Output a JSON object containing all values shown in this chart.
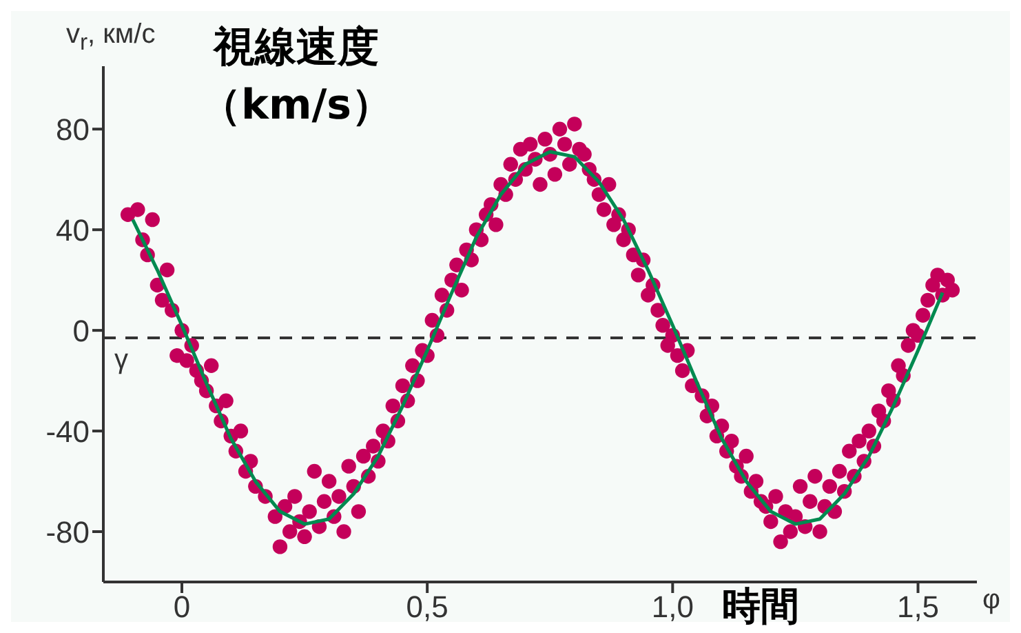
{
  "chart_data": {
    "type": "scatter",
    "xlabel": "φ",
    "ylabel": "v$_{r}$, км/с",
    "annotations": [
      "視線速度",
      "（km/s）",
      "時間"
    ],
    "xlim": [
      -0.16,
      1.62
    ],
    "xticks": [
      0,
      {
        "value": 0.5,
        "label": "0,5"
      },
      {
        "value": 1,
        "label": "1,0"
      },
      {
        "value": 1.5,
        "label": "1,5"
      }
    ],
    "ylim": [
      -100,
      105
    ],
    "yticks": [
      -80,
      -40,
      0,
      40,
      80
    ],
    "legend": false,
    "ref_lines": [
      {
        "axis": "y",
        "value": -3,
        "label": "γ",
        "color": "#333333",
        "line_style": "dashed"
      }
    ],
    "series": [
      {
        "type": "scatter",
        "color": "#c4005a",
        "marker": "circle",
        "x": [
          -0.11,
          -0.09,
          -0.08,
          -0.07,
          -0.06,
          -0.05,
          -0.04,
          -0.03,
          -0.02,
          -0.01,
          0,
          0.01,
          0.02,
          0.03,
          0.04,
          0.05,
          0.06,
          0.07,
          0.08,
          0.09,
          0.1,
          0.11,
          0.12,
          0.13,
          0.14,
          0.15,
          0.17,
          0.19,
          0.2,
          0.21,
          0.22,
          0.23,
          0.24,
          0.25,
          0.26,
          0.27,
          0.28,
          0.29,
          0.3,
          0.31,
          0.32,
          0.33,
          0.34,
          0.35,
          0.36,
          0.37,
          0.38,
          0.39,
          0.4,
          0.41,
          0.42,
          0.43,
          0.44,
          0.45,
          0.46,
          0.47,
          0.48,
          0.49,
          0.5,
          0.51,
          0.52,
          0.53,
          0.54,
          0.55,
          0.56,
          0.57,
          0.58,
          0.59,
          0.6,
          0.61,
          0.62,
          0.63,
          0.64,
          0.65,
          0.66,
          0.67,
          0.68,
          0.69,
          0.7,
          0.71,
          0.72,
          0.73,
          0.74,
          0.75,
          0.76,
          0.77,
          0.78,
          0.79,
          0.8,
          0.81,
          0.82,
          0.83,
          0.84,
          0.85,
          0.86,
          0.87,
          0.88,
          0.89,
          0.9,
          0.91,
          0.92,
          0.93,
          0.94,
          0.95,
          0.96,
          0.97,
          0.98,
          0.99,
          1.0,
          1.01,
          1.02,
          1.03,
          1.04,
          1.06,
          1.07,
          1.08,
          1.09,
          1.1,
          1.11,
          1.12,
          1.13,
          1.14,
          1.15,
          1.16,
          1.17,
          1.18,
          1.19,
          1.2,
          1.21,
          1.22,
          1.23,
          1.24,
          1.25,
          1.26,
          1.27,
          1.28,
          1.29,
          1.3,
          1.31,
          1.32,
          1.33,
          1.34,
          1.35,
          1.36,
          1.37,
          1.38,
          1.39,
          1.4,
          1.41,
          1.42,
          1.43,
          1.44,
          1.45,
          1.46,
          1.47,
          1.48,
          1.49,
          1.5,
          1.51,
          1.52,
          1.53,
          1.54,
          1.55,
          1.56,
          1.57
        ],
        "values": [
          46,
          48,
          36,
          30,
          44,
          18,
          12,
          24,
          8,
          -10,
          0,
          -12,
          -6,
          -16,
          -20,
          -24,
          -14,
          -30,
          -36,
          -28,
          -42,
          -48,
          -40,
          -56,
          -52,
          -62,
          -66,
          -74,
          -86,
          -70,
          -80,
          -66,
          -76,
          -82,
          -72,
          -56,
          -78,
          -68,
          -60,
          -74,
          -66,
          -80,
          -54,
          -62,
          -72,
          -50,
          -58,
          -46,
          -52,
          -40,
          -44,
          -30,
          -36,
          -22,
          -28,
          -14,
          -20,
          -8,
          -10,
          4,
          -2,
          14,
          8,
          20,
          26,
          16,
          32,
          28,
          40,
          36,
          46,
          50,
          42,
          58,
          54,
          66,
          60,
          72,
          64,
          74,
          68,
          58,
          76,
          70,
          62,
          80,
          74,
          66,
          82,
          72,
          70,
          64,
          60,
          54,
          48,
          58,
          42,
          46,
          36,
          40,
          30,
          22,
          28,
          14,
          18,
          8,
          2,
          -6,
          -2,
          -10,
          -16,
          -8,
          -22,
          -26,
          -34,
          -30,
          -42,
          -38,
          -48,
          -44,
          -54,
          -58,
          -50,
          -64,
          -60,
          -68,
          -70,
          -76,
          -66,
          -84,
          -72,
          -80,
          -74,
          -62,
          -78,
          -68,
          -58,
          -80,
          -70,
          -62,
          -72,
          -56,
          -64,
          -48,
          -58,
          -44,
          -52,
          -40,
          -46,
          -32,
          -36,
          -24,
          -28,
          -14,
          -18,
          -6,
          0,
          -2,
          6,
          12,
          18,
          22,
          14,
          20,
          16
        ]
      },
      {
        "type": "line",
        "color": "#008a50",
        "marker": "none",
        "x": [
          -0.1,
          -0.05,
          0,
          0.05,
          0.1,
          0.15,
          0.2,
          0.25,
          0.3,
          0.35,
          0.4,
          0.45,
          0.5,
          0.55,
          0.6,
          0.65,
          0.7,
          0.75,
          0.8,
          0.85,
          0.9,
          0.95,
          1.0,
          1.05,
          1.1,
          1.15,
          1.2,
          1.25,
          1.3,
          1.35,
          1.4,
          1.45,
          1.5,
          1.55
        ],
        "values": [
          44,
          24,
          2,
          -21,
          -43,
          -60,
          -72,
          -77,
          -75,
          -65,
          -50,
          -30,
          -8,
          15,
          37,
          54,
          66,
          71,
          69,
          59,
          44,
          24,
          2,
          -21,
          -43,
          -60,
          -72,
          -77,
          -75,
          -65,
          -50,
          -30,
          -8,
          15
        ]
      }
    ]
  }
}
